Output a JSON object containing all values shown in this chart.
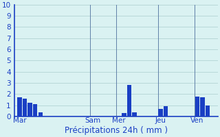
{
  "bar_data": [
    {
      "x": 0,
      "height": 1.7
    },
    {
      "x": 1,
      "height": 1.6
    },
    {
      "x": 2,
      "height": 1.2
    },
    {
      "x": 3,
      "height": 1.1
    },
    {
      "x": 4,
      "height": 0.4
    },
    {
      "x": 20,
      "height": 0.3
    },
    {
      "x": 21,
      "height": 2.8
    },
    {
      "x": 22,
      "height": 0.4
    },
    {
      "x": 27,
      "height": 0.7
    },
    {
      "x": 28,
      "height": 0.9
    },
    {
      "x": 34,
      "height": 1.8
    },
    {
      "x": 35,
      "height": 1.7
    },
    {
      "x": 36,
      "height": 1.0
    }
  ],
  "tick_labels": [
    "Mar",
    "Sam",
    "Mer",
    "Jeu",
    "Ven"
  ],
  "tick_positions": [
    0,
    14,
    19,
    27,
    34
  ],
  "vline_positions": [
    14,
    19,
    27,
    34
  ],
  "xlabel": "Précipitations 24h ( mm )",
  "xlim": [
    -1,
    38
  ],
  "ylim": [
    0,
    10
  ],
  "yticks": [
    0,
    1,
    2,
    3,
    4,
    5,
    6,
    7,
    8,
    9,
    10
  ],
  "bar_color": "#1a3fc4",
  "bar_width": 0.85,
  "background_color": "#daf2f2",
  "grid_color": "#aacece",
  "vline_color": "#6080a8",
  "xlabel_fontsize": 8.5,
  "tick_fontsize": 7.5,
  "ytick_fontsize": 7.5
}
